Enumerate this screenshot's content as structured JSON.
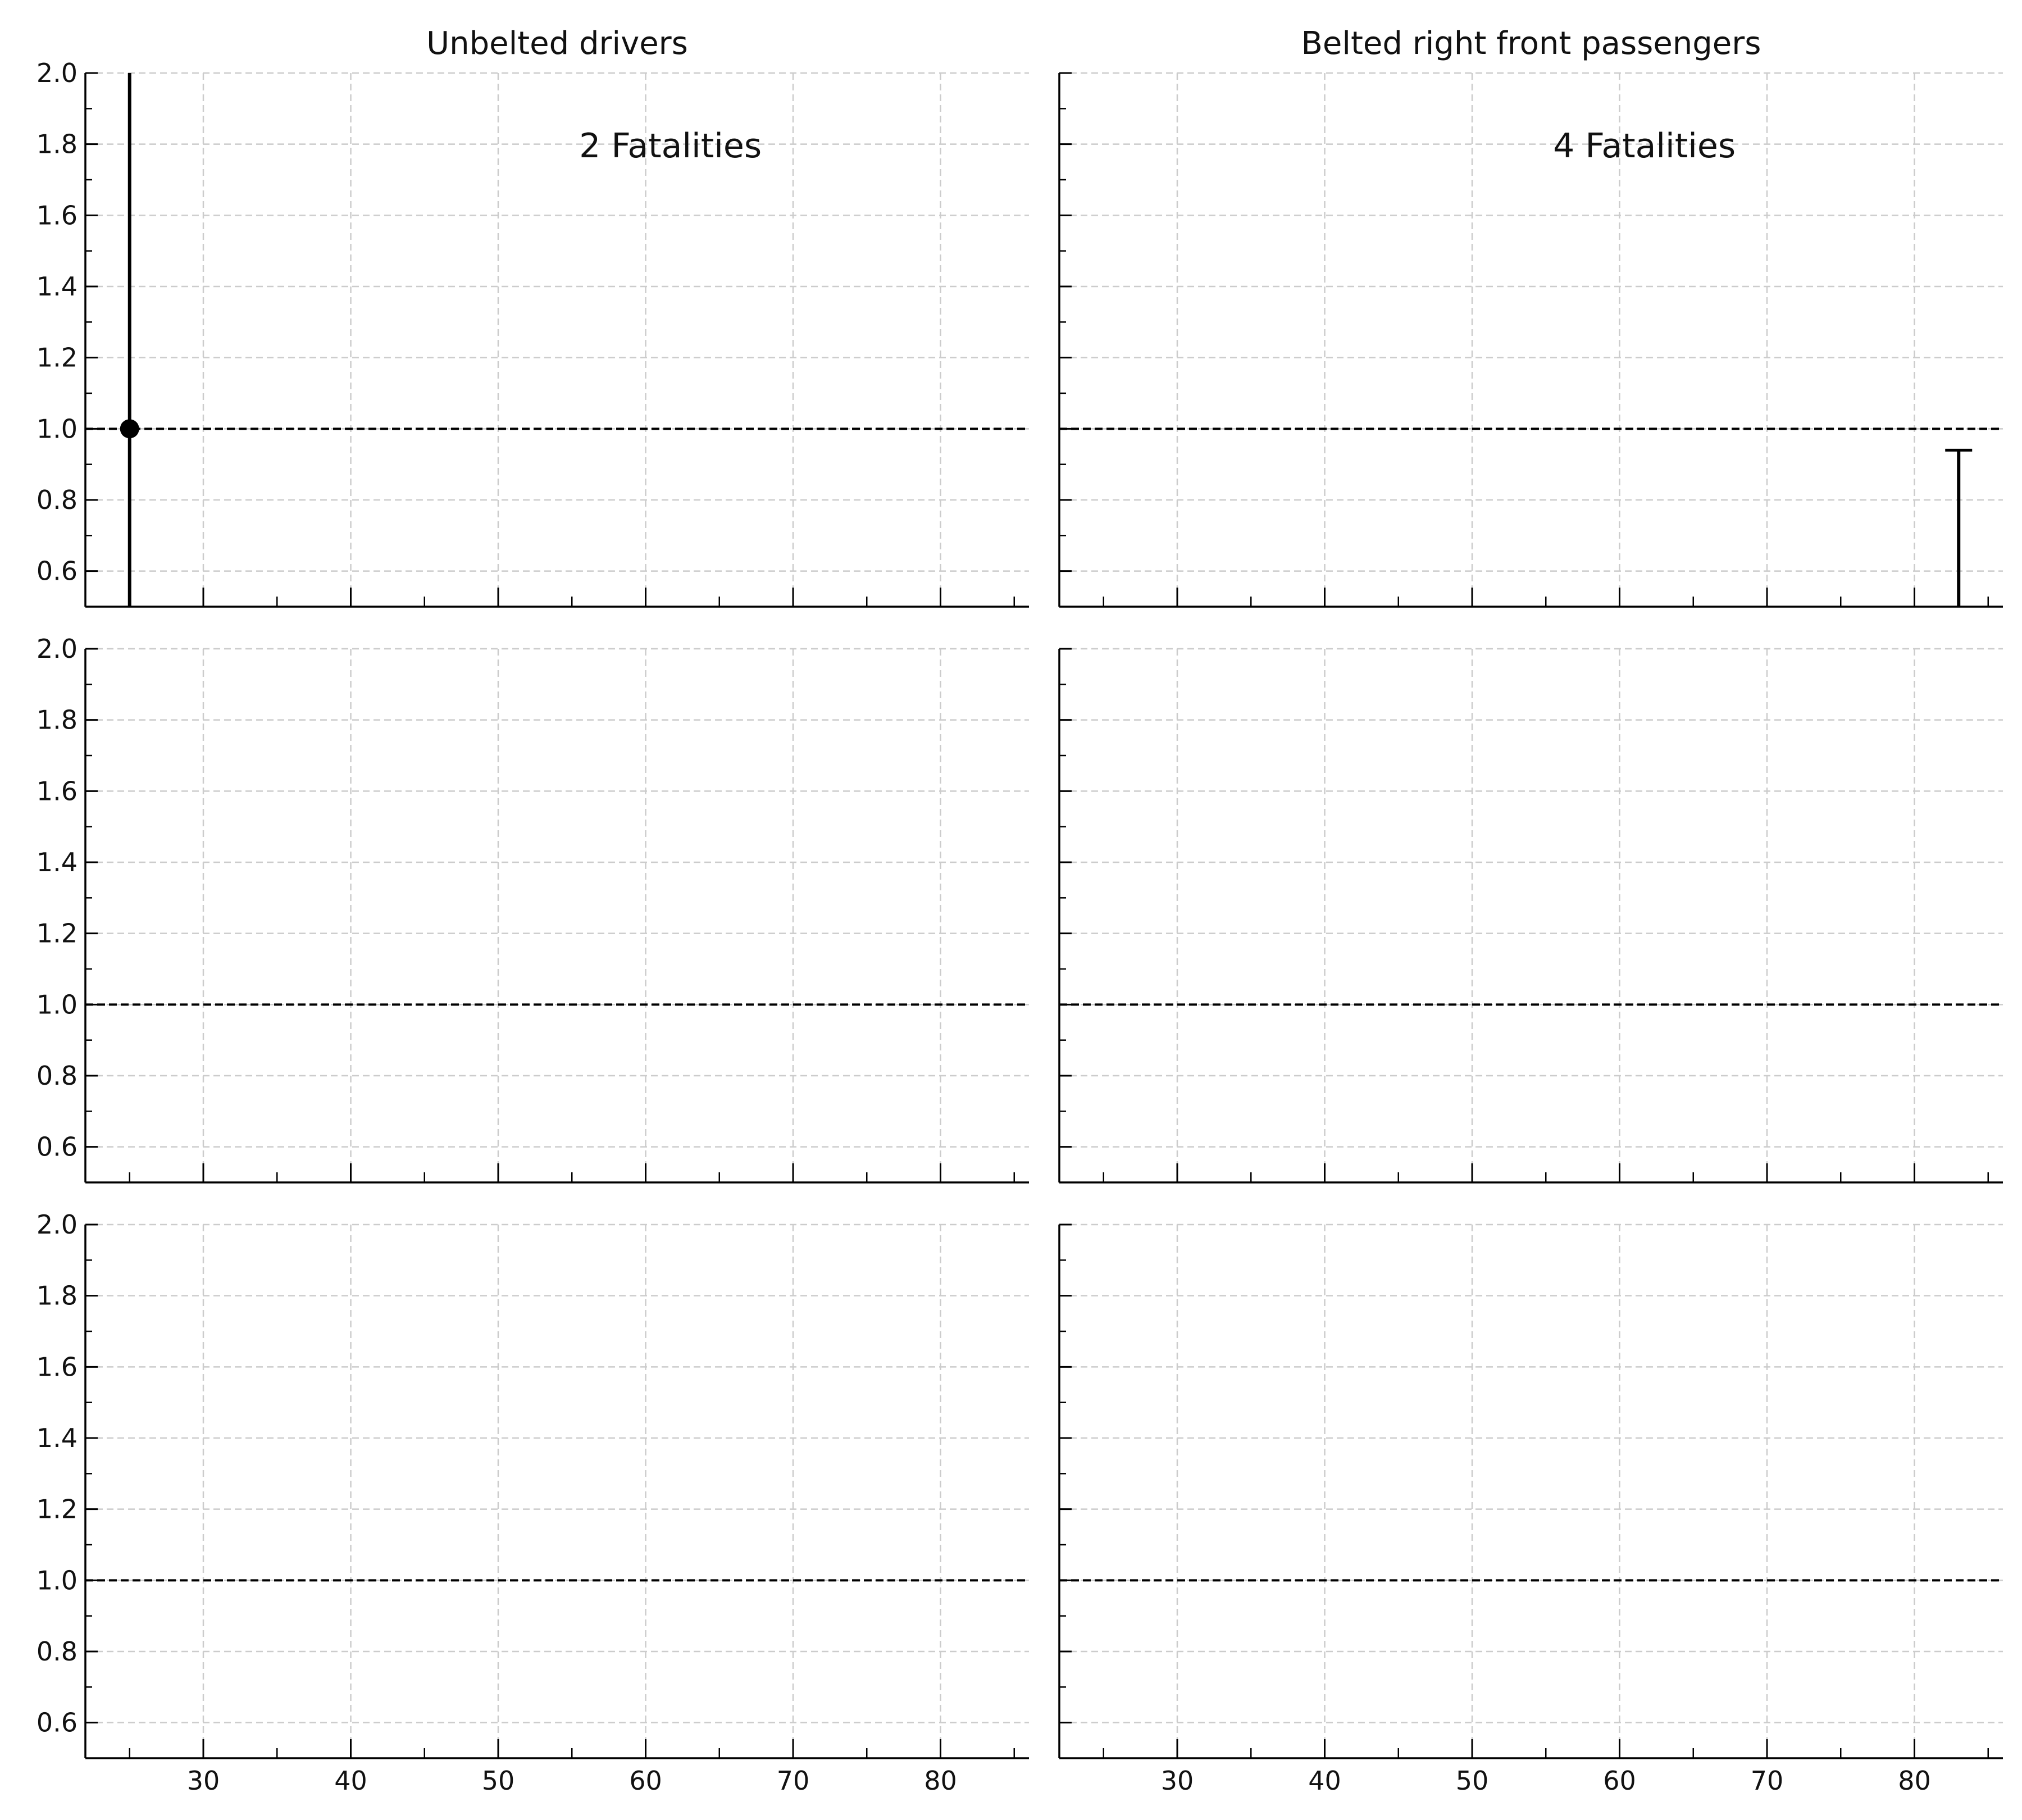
{
  "chart_data": [
    {
      "type": "errorbar",
      "title": "Unbelted drivers",
      "annotation": "2 Fatalities",
      "xlim": [
        22,
        86
      ],
      "ylim": [
        0.5,
        2.0
      ],
      "grid": true,
      "reference_line": 1.0,
      "xticks": [
        30,
        40,
        50,
        60,
        70,
        80
      ],
      "yticks": [
        0.6,
        0.8,
        1.0,
        1.2,
        1.4,
        1.6,
        1.8,
        2.0
      ],
      "points": [
        {
          "x": 25,
          "y": 1.0,
          "low": 0.5,
          "high": 2.0,
          "marker": true,
          "lower_cap": false,
          "upper_cap": false
        }
      ]
    },
    {
      "type": "errorbar",
      "title": "Belted right front passengers",
      "annotation": "4 Fatalities",
      "xlim": [
        22,
        86
      ],
      "ylim": [
        0.5,
        2.0
      ],
      "grid": true,
      "reference_line": 1.0,
      "xticks": [
        30,
        40,
        50,
        60,
        70,
        80
      ],
      "yticks": [
        0.6,
        0.8,
        1.0,
        1.2,
        1.4,
        1.6,
        1.8,
        2.0
      ],
      "points": [
        {
          "x": 83,
          "y": null,
          "low": 0.5,
          "high": 0.94,
          "marker": false,
          "lower_cap": false,
          "upper_cap": true
        }
      ]
    },
    {
      "type": "errorbar",
      "title": "",
      "annotation": "",
      "xlim": [
        22,
        86
      ],
      "ylim": [
        0.5,
        2.0
      ],
      "grid": true,
      "reference_line": 1.0,
      "xticks": [
        30,
        40,
        50,
        60,
        70,
        80
      ],
      "yticks": [
        0.6,
        0.8,
        1.0,
        1.2,
        1.4,
        1.6,
        1.8,
        2.0
      ],
      "points": []
    },
    {
      "type": "errorbar",
      "title": "",
      "annotation": "",
      "xlim": [
        22,
        86
      ],
      "ylim": [
        0.5,
        2.0
      ],
      "grid": true,
      "reference_line": 1.0,
      "xticks": [
        30,
        40,
        50,
        60,
        70,
        80
      ],
      "yticks": [
        0.6,
        0.8,
        1.0,
        1.2,
        1.4,
        1.6,
        1.8,
        2.0
      ],
      "points": []
    },
    {
      "type": "errorbar",
      "title": "",
      "annotation": "",
      "xlim": [
        22,
        86
      ],
      "ylim": [
        0.5,
        2.0
      ],
      "grid": true,
      "reference_line": 1.0,
      "xticks": [
        30,
        40,
        50,
        60,
        70,
        80
      ],
      "yticks": [
        0.6,
        0.8,
        1.0,
        1.2,
        1.4,
        1.6,
        1.8,
        2.0
      ],
      "points": []
    },
    {
      "type": "errorbar",
      "title": "",
      "annotation": "",
      "xlim": [
        22,
        86
      ],
      "ylim": [
        0.5,
        2.0
      ],
      "grid": true,
      "reference_line": 1.0,
      "xticks": [
        30,
        40,
        50,
        60,
        70,
        80
      ],
      "yticks": [
        0.6,
        0.8,
        1.0,
        1.2,
        1.4,
        1.6,
        1.8,
        2.0
      ],
      "points": []
    }
  ]
}
